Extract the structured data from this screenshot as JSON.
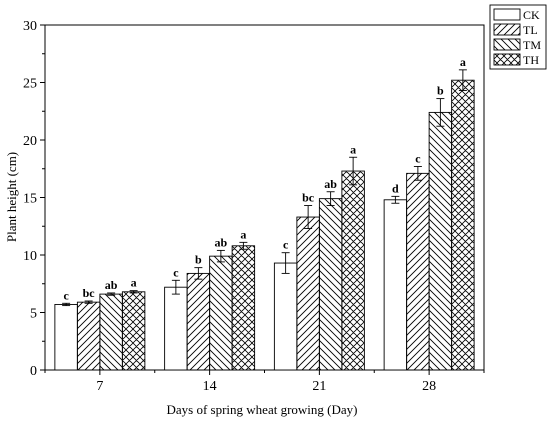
{
  "chart_data": {
    "type": "bar",
    "title": "",
    "xlabel": "Days of spring wheat growing (Day)",
    "ylabel": "Plant height (cm)",
    "ylim": [
      0,
      30
    ],
    "yticks": [
      0,
      5,
      10,
      15,
      20,
      25,
      30
    ],
    "categories": [
      "7",
      "14",
      "21",
      "28"
    ],
    "legend_position": "top-right",
    "grid": false,
    "series": [
      {
        "name": "CK",
        "pattern": "none",
        "values": [
          5.7,
          7.2,
          9.3,
          14.8
        ],
        "errors": [
          0.1,
          0.6,
          0.9,
          0.3
        ],
        "labels": [
          "c",
          "c",
          "c",
          "d"
        ]
      },
      {
        "name": "TL",
        "pattern": "diagonal",
        "values": [
          5.9,
          8.4,
          13.3,
          17.1
        ],
        "errors": [
          0.1,
          0.5,
          1.0,
          0.6
        ],
        "labels": [
          "bc",
          "b",
          "bc",
          "c"
        ]
      },
      {
        "name": "TM",
        "pattern": "back-diagonal",
        "values": [
          6.6,
          9.9,
          14.9,
          22.4
        ],
        "errors": [
          0.1,
          0.5,
          0.6,
          1.2
        ],
        "labels": [
          "ab",
          "ab",
          "ab",
          "b"
        ]
      },
      {
        "name": "TH",
        "pattern": "crosshatch",
        "values": [
          6.8,
          10.8,
          17.3,
          25.2
        ],
        "errors": [
          0.1,
          0.3,
          1.2,
          0.9
        ],
        "labels": [
          "a",
          "a",
          "a",
          "a"
        ]
      }
    ]
  }
}
